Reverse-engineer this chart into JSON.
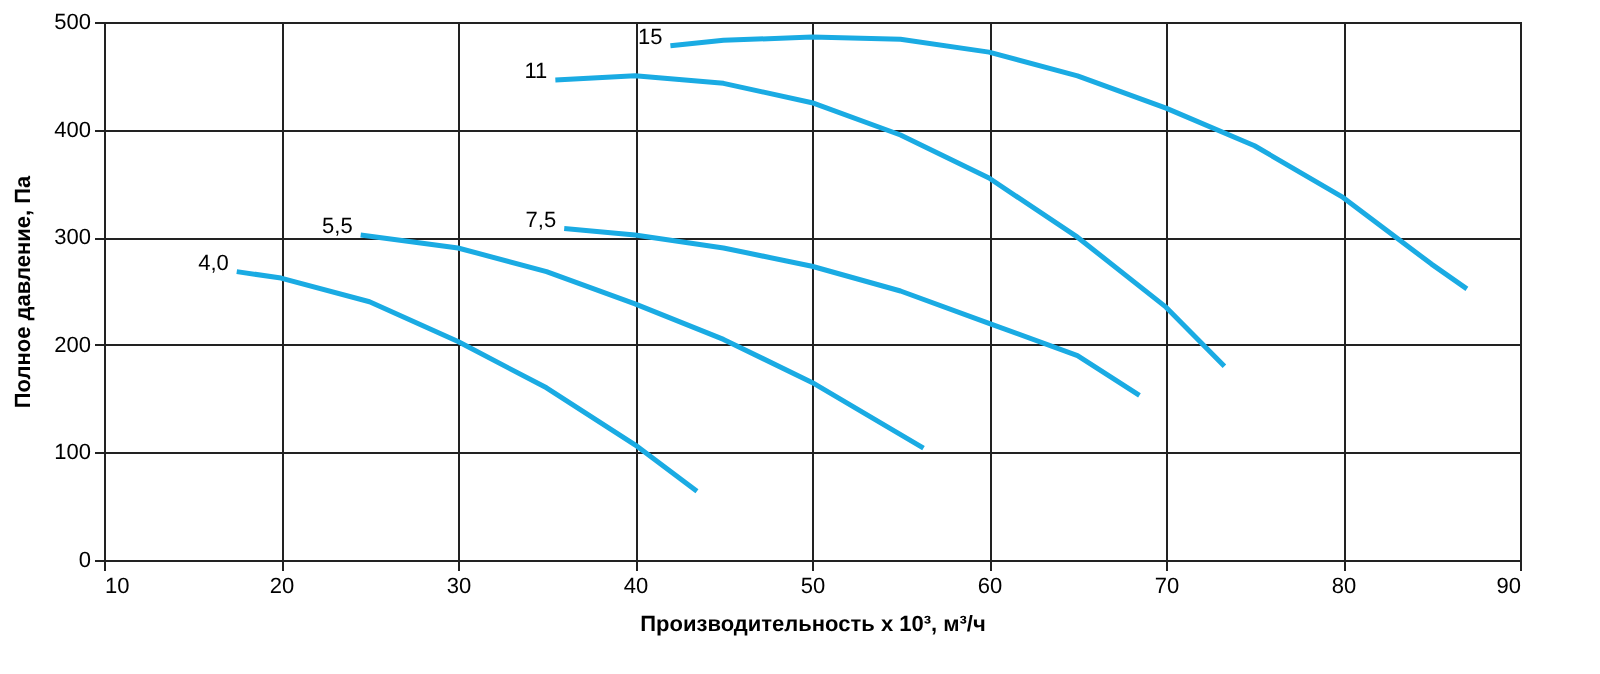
{
  "chart_data": {
    "type": "line",
    "xlabel": "Производительность х 10³, м³/ч",
    "ylabel": "Полное давление, Па",
    "xlim": [
      10,
      90
    ],
    "xticks": [
      10,
      20,
      30,
      40,
      50,
      60,
      70,
      80,
      90
    ],
    "ylim": [
      0,
      500
    ],
    "yticks": [
      0,
      100,
      200,
      300,
      400,
      500
    ],
    "grid": true,
    "legend": false,
    "marker": "none",
    "line_style": "solid",
    "series": [
      {
        "name": "4,0",
        "color": "#1aabe3",
        "x": [
          17.5,
          20,
          25,
          30,
          35,
          40,
          43.5
        ],
        "values": [
          268,
          262,
          240,
          203,
          160,
          107,
          64
        ]
      },
      {
        "name": "5,5",
        "color": "#1aabe3",
        "x": [
          24.5,
          30,
          35,
          40,
          45,
          50,
          56.3
        ],
        "values": [
          302,
          290,
          268,
          238,
          205,
          165,
          104
        ]
      },
      {
        "name": "7,5",
        "color": "#1aabe3",
        "x": [
          36,
          40,
          45,
          50,
          55,
          60,
          65,
          68.5
        ],
        "values": [
          308,
          302,
          290,
          273,
          250,
          220,
          190,
          153
        ]
      },
      {
        "name": "11",
        "color": "#1aabe3",
        "x": [
          35.5,
          40,
          45,
          50,
          55,
          60,
          65,
          70,
          73.3
        ],
        "values": [
          446,
          450,
          443,
          425,
          395,
          355,
          300,
          235,
          180
        ]
      },
      {
        "name": "15",
        "color": "#1aabe3",
        "x": [
          42,
          45,
          50,
          55,
          60,
          65,
          70,
          75,
          80,
          85,
          87
        ],
        "values": [
          478,
          483,
          486,
          484,
          472,
          450,
          420,
          385,
          337,
          275,
          252
        ]
      }
    ]
  }
}
